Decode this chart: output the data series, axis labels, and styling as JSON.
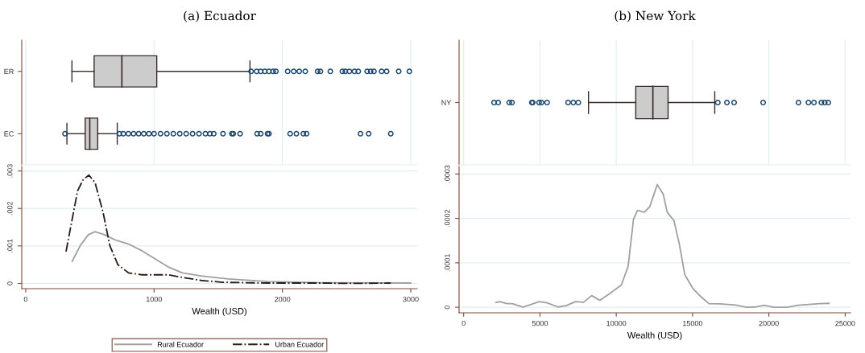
{
  "chart_data": [
    {
      "type": "box",
      "title": "(a) Ecuador",
      "orientation": "horizontal",
      "categories": [
        "ER",
        "EC"
      ],
      "xlim": [
        -31,
        3050
      ],
      "xticks": [
        0,
        1000,
        2000,
        3000
      ],
      "tick_labels": "y",
      "grid": "x",
      "color": "#cccccc",
      "boxes": [
        {
          "low": 360,
          "q1": 533,
          "median": 749,
          "q3": 1021,
          "high": 1747,
          "outliers": [
            1756,
            1799,
            1831,
            1863,
            1895,
            1927,
            1949,
            2041,
            2088,
            2131,
            2178,
            2274,
            2296,
            2373,
            2467,
            2490,
            2522,
            2561,
            2591,
            2660,
            2687,
            2713,
            2773,
            2812,
            2906,
            2989
          ]
        },
        {
          "low": 321,
          "q1": 463,
          "median": 499,
          "q3": 561,
          "high": 713,
          "outliers": [
            306,
            730,
            760,
            800,
            840,
            880,
            920,
            960,
            1000,
            1050,
            1100,
            1150,
            1200,
            1250,
            1300,
            1350,
            1400,
            1435,
            1465,
            1537,
            1606,
            1617,
            1670,
            1803,
            1831,
            1884,
            1895,
            2060,
            2109,
            2163,
            2188,
            2608,
            2672,
            2844
          ]
        }
      ]
    },
    {
      "type": "line",
      "xlabel": "Wealth (USD)",
      "xlim": [
        -31,
        3050
      ],
      "xticks": [
        0,
        1000,
        2000,
        3000
      ],
      "ylim": [
        -0.00014,
        0.00312
      ],
      "yticks": [
        0,
        {
          "value": 0.001,
          "label": ".001"
        },
        {
          "value": 0.002,
          "label": ".002"
        },
        {
          "value": 0.003,
          "label": ".003"
        }
      ],
      "grid": "y",
      "legend": "bottom",
      "series": [
        {
          "name": "Rural Ecuador",
          "color": "#a0a0a0",
          "line_style": "solid",
          "x": [
            362,
            425,
            488,
            540,
            613,
            697,
            802,
            906,
            1011,
            1116,
            1220,
            1367,
            1576,
            1890,
            2309,
            3000
          ],
          "values": [
            0.00059,
            0.00101,
            0.0013,
            0.00138,
            0.0013,
            0.00116,
            0.00105,
            0.00087,
            0.00065,
            0.00043,
            0.00028,
            0.0002,
            0.00012,
            5e-05,
            2e-05,
            1e-05
          ]
        },
        {
          "name": "Urban Ecuador",
          "color": "#2a1a1a",
          "line_style": "dashdot",
          "x": [
            314,
            404,
            446,
            492,
            540,
            603,
            655,
            718,
            802,
            906,
            1011,
            1116,
            1220,
            1367,
            1534,
            1890,
            2309,
            2518,
            2843
          ],
          "values": [
            0.00085,
            0.00247,
            0.00276,
            0.00289,
            0.00269,
            0.00189,
            0.00101,
            0.0005,
            0.00028,
            0.00023,
            0.00023,
            0.00023,
            0.00016,
            8e-05,
            3e-05,
            1e-05,
            1e-05,
            0,
            1e-05
          ]
        }
      ]
    },
    {
      "type": "box",
      "title": "(b) New York",
      "orientation": "horizontal",
      "categories": [
        "NY"
      ],
      "xlim": [
        -300,
        25350
      ],
      "xticks": [
        0,
        5000,
        10000,
        15000,
        20000,
        25000
      ],
      "tick_labels": "y",
      "grid": "x",
      "color": "#cccccc",
      "boxes": [
        {
          "low": 8182,
          "q1": 11278,
          "median": 12400,
          "q3": 13396,
          "high": 16455,
          "outliers": [
            1991,
            2263,
            2987,
            3168,
            4471,
            4526,
            4942,
            5105,
            5467,
            6843,
            7187,
            7513,
            16655,
            17252,
            17723,
            19624,
            21941,
            22593,
            22955,
            23443,
            23660,
            23896
          ]
        }
      ]
    },
    {
      "type": "line",
      "xlabel": "Wealth (USD)",
      "xlim": [
        -300,
        25350
      ],
      "xticks": [
        0,
        5000,
        10000,
        15000,
        20000,
        25000
      ],
      "ylim": [
        -1.25e-05,
        0.000317
      ],
      "yticks": [
        0,
        {
          "value": 0.0001,
          "label": ".0001"
        },
        {
          "value": 0.0002,
          "label": ".0002"
        },
        {
          "value": 0.0003,
          "label": ".0003"
        }
      ],
      "grid": "y",
      "series": [
        {
          "color": "#a0a0a0",
          "line_style": "solid",
          "x": [
            2120,
            2385,
            2827,
            3180,
            3887,
            4417,
            4947,
            5477,
            6184,
            6714,
            7332,
            7862,
            8392,
            8922,
            9541,
            10336,
            10777,
            11131,
            11396,
            11837,
            12191,
            12686,
            13074,
            13339,
            13781,
            14134,
            14488,
            15018,
            15548,
            16078,
            16784,
            17314,
            17845,
            18551,
            19081,
            19700,
            20318,
            21201,
            21908,
            22615,
            23322,
            23940
          ],
          "values": [
            1.06e-05,
            1.25e-05,
            8.1e-06,
            8.1e-06,
            6e-07,
            6.2e-06,
            1.25e-05,
            1e-05,
            6e-07,
            3.7e-06,
            1.25e-05,
            1.12e-05,
            2.62e-05,
            1.56e-05,
            3e-05,
            5e-05,
            9.23e-05,
            0.000198,
            0.000218,
            0.000214,
            0.000226,
            0.000276,
            0.000255,
            0.000214,
            0.000195,
            0.000142,
            7.36e-05,
            4.24e-05,
            2.37e-05,
            8.1e-06,
            7.5e-06,
            6.2e-06,
            5e-06,
            0,
            6e-07,
            4.4e-06,
            0,
            0,
            4.4e-06,
            6.2e-06,
            8.1e-06,
            8.7e-06
          ]
        }
      ]
    }
  ]
}
